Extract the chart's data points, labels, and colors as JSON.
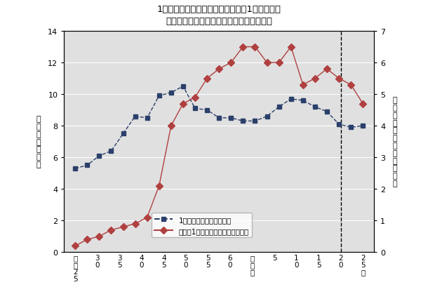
{
  "title_line1": "1事業所当たりの従業者数、従業者1人当たりの",
  "title_line2": "年間商品販売額の推移（鳥取県、卸売業）",
  "ylabel_left_chars": [
    "従",
    "業",
    "者",
    "数",
    "（",
    "人",
    "）"
  ],
  "ylabel_right_chars": [
    "年",
    "間",
    "商",
    "品",
    "販",
    "売",
    "額",
    "（",
    "千",
    "万",
    "円",
    "）"
  ],
  "ylim_left": [
    0,
    14
  ],
  "ylim_right": [
    0,
    7
  ],
  "yticks_left": [
    0,
    2,
    4,
    6,
    8,
    10,
    12,
    14
  ],
  "yticks_right": [
    0,
    1,
    2,
    3,
    4,
    5,
    6,
    7
  ],
  "employees_per_establishment": [
    5.3,
    5.5,
    6.1,
    6.4,
    7.5,
    8.6,
    8.5,
    9.9,
    10.1,
    10.5,
    9.1,
    9.0,
    8.5,
    8.5,
    8.3,
    8.3,
    8.6,
    9.2,
    9.7,
    9.6,
    9.2,
    8.9,
    8.1,
    7.9,
    8.0
  ],
  "sales_per_employee": [
    0.2,
    0.4,
    0.5,
    0.7,
    0.8,
    0.9,
    1.1,
    2.1,
    4.0,
    4.7,
    4.9,
    5.5,
    5.8,
    6.0,
    6.5,
    6.5,
    6.0,
    6.0,
    6.5,
    5.3,
    5.5,
    5.8,
    5.5,
    5.3,
    4.7
  ],
  "color_emp": "#2b3f6b",
  "color_sales": "#b04040",
  "legend_emp": "1事業所当たりの従業者数",
  "legend_sales": "従業者1人当たりの年間商品販売額",
  "bg_color": "#e0e0e0",
  "n_labels": 14,
  "n_data": 25,
  "dashed_line_label_idx": 12
}
